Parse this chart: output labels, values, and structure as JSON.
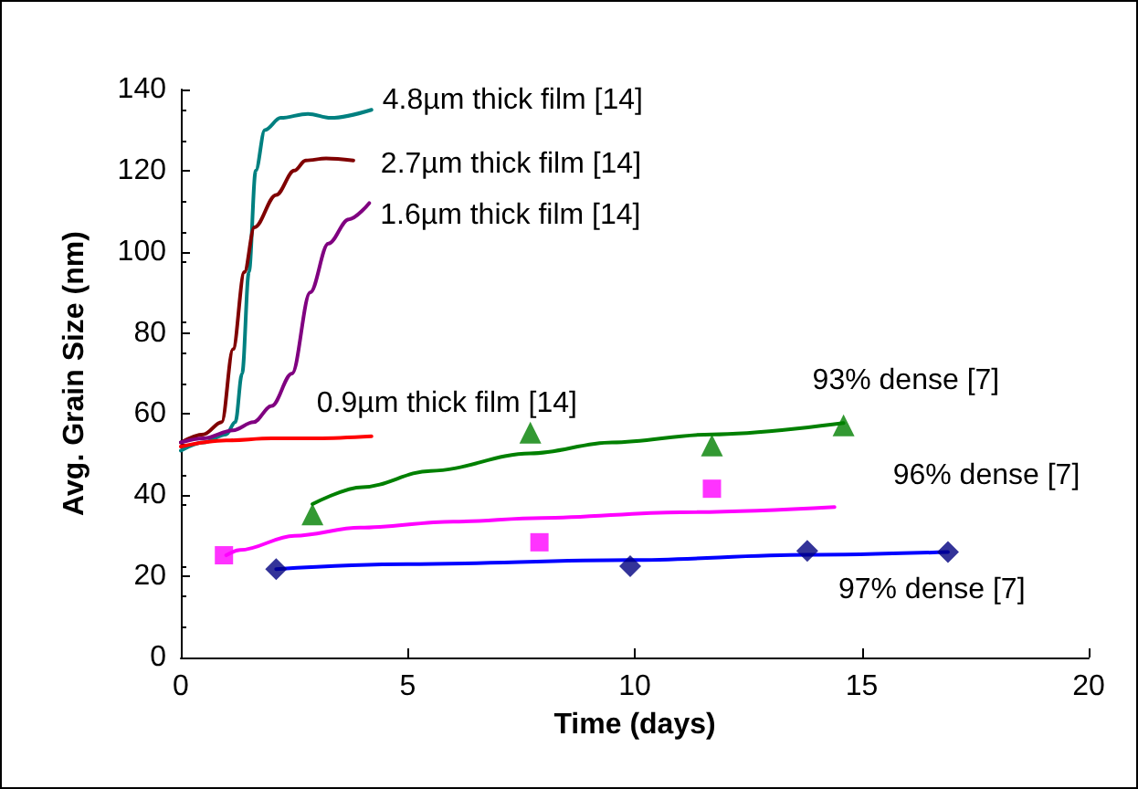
{
  "chart_data": {
    "type": "line",
    "xlabel": "Time (days)",
    "ylabel": "Avg. Grain Size (nm)",
    "xlim": [
      0,
      20
    ],
    "xticks": [
      0,
      5,
      10,
      15,
      20
    ],
    "ylim": [
      0,
      140
    ],
    "yticks": [
      0,
      20,
      40,
      60,
      80,
      100,
      120,
      140
    ],
    "grid": false,
    "legend": false,
    "line_style": "solid",
    "series": [
      {
        "name": "4.8µm thick film [14]",
        "color": "#008080",
        "marker": "none",
        "x": [
          0,
          0.5,
          1,
          1.2,
          1.35,
          1.5,
          1.65,
          1.85,
          2.2,
          2.8,
          3.3,
          4.2
        ],
        "values": [
          51,
          53,
          55,
          58,
          70,
          95,
          120,
          130,
          133,
          134,
          133,
          135
        ]
      },
      {
        "name": "2.7µm thick film [14]",
        "color": "#800000",
        "marker": "none",
        "x": [
          0,
          0.5,
          0.9,
          1.15,
          1.4,
          1.62,
          2.1,
          2.5,
          2.75,
          3.2,
          3.8
        ],
        "values": [
          53,
          55,
          58,
          76,
          95,
          106,
          114,
          120,
          122.5,
          123,
          122.5
        ]
      },
      {
        "name": "1.6µm thick film [14]",
        "color": "#800080",
        "marker": "none",
        "x": [
          0,
          0.5,
          1.15,
          1.6,
          2.0,
          2.45,
          2.85,
          3.25,
          3.7,
          4.15
        ],
        "values": [
          53,
          54,
          56,
          58,
          62,
          70,
          90,
          102,
          108,
          112
        ]
      },
      {
        "name": "0.9µm thick film [14]",
        "color": "#ff0000",
        "marker": "none",
        "x": [
          0,
          1,
          2,
          3,
          4.2
        ],
        "values": [
          52,
          53.5,
          54,
          54,
          54.5
        ]
      },
      {
        "name": "93% dense [7]",
        "color": "#008000",
        "marker": "none",
        "x": [
          2.9,
          4,
          5.5,
          7.7,
          9.5,
          11.7,
          14.6
        ],
        "values": [
          37.8,
          42,
          46,
          50.3,
          53,
          55,
          57.8
        ]
      },
      {
        "type": "scatter",
        "color": "#008000",
        "marker": "triangle",
        "x": [
          2.9,
          7.7,
          11.7,
          14.6
        ],
        "values": [
          35.3,
          55.4,
          52.3,
          57.2
        ]
      },
      {
        "name": "96% dense [7]",
        "color": "#ff00ff",
        "marker": "none",
        "x": [
          1,
          1.3,
          2.5,
          3.95,
          6,
          7.95,
          11,
          14.4
        ],
        "values": [
          25.2,
          26.5,
          30,
          32,
          33.5,
          34.4,
          35.8,
          37.1
        ]
      },
      {
        "type": "scatter",
        "color": "#ff00ff",
        "marker": "square",
        "x": [
          0.95,
          7.9,
          11.7
        ],
        "values": [
          25.2,
          28.4,
          41.6
        ]
      },
      {
        "name": "97% dense [7]",
        "color": "#0000ff",
        "marker": "none",
        "x": [
          2.1,
          5,
          9.9,
          13.8,
          16.9
        ],
        "values": [
          21.8,
          23,
          24,
          25.3,
          26
        ]
      },
      {
        "type": "scatter",
        "color": "#000080",
        "marker": "diamond",
        "x": [
          2.1,
          9.9,
          13.8,
          16.9
        ],
        "values": [
          21.8,
          22.5,
          26.3,
          26
        ]
      }
    ]
  }
}
